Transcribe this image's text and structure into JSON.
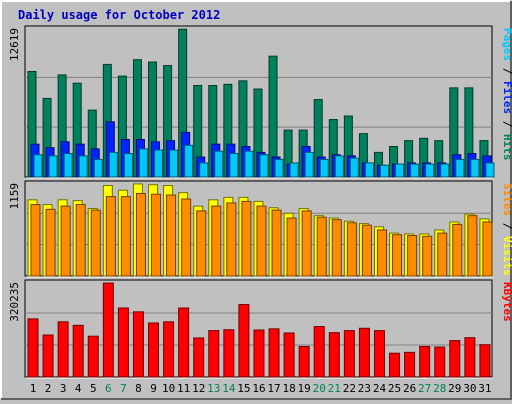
{
  "chart_data": {
    "type": "bar",
    "title": "Daily usage for October 2012",
    "categories": [
      "1",
      "2",
      "3",
      "4",
      "5",
      "6",
      "7",
      "8",
      "9",
      "10",
      "11",
      "12",
      "13",
      "14",
      "15",
      "16",
      "17",
      "18",
      "19",
      "20",
      "21",
      "22",
      "23",
      "24",
      "25",
      "26",
      "27",
      "28",
      "29",
      "30",
      "31"
    ],
    "weekend_days": [
      "6",
      "7",
      "13",
      "14",
      "20",
      "21",
      "27",
      "28"
    ],
    "panels": [
      {
        "id": "hits-files-pages",
        "ymax_label": "12619",
        "ylim": [
          0,
          12619
        ],
        "right_label": [
          "Pages",
          "Files",
          "Hits"
        ],
        "series": [
          {
            "name": "Hits",
            "color": "#00805c",
            "values": [
              9000,
              6700,
              8700,
              8000,
              5700,
              9600,
              8600,
              10000,
              9800,
              9500,
              12600,
              7800,
              7800,
              7900,
              8200,
              7500,
              10300,
              4000,
              4000,
              6600,
              4900,
              5200,
              3700,
              2100,
              2600,
              3100,
              3300,
              3100,
              7600,
              7600,
              3100
            ]
          },
          {
            "name": "Files",
            "color": "#0024ff",
            "values": [
              2800,
              2500,
              3000,
              2800,
              2400,
              4700,
              3200,
              3200,
              3000,
              3100,
              3800,
              1700,
              2800,
              2800,
              2600,
              2100,
              1700,
              1100,
              2600,
              1700,
              1900,
              1800,
              1200,
              1000,
              1100,
              1200,
              1200,
              1200,
              1900,
              2000,
              1800
            ]
          },
          {
            "name": "Pages",
            "color": "#00c8f8",
            "values": [
              1900,
              1800,
              2000,
              1800,
              1500,
              2100,
              2000,
              2400,
              2300,
              2300,
              2700,
              1200,
              2200,
              2000,
              2200,
              1900,
              1500,
              1200,
              2100,
              1500,
              1800,
              1600,
              1200,
              1000,
              1100,
              1100,
              1100,
              1100,
              1500,
              1500,
              1200
            ]
          }
        ]
      },
      {
        "id": "visits-sites",
        "ymax_label": "1159",
        "ylim": [
          0,
          1159
        ],
        "right_label": [
          "Sites",
          "Visits"
        ],
        "series": [
          {
            "name": "Visits",
            "color": "#ffff00",
            "values": [
              960,
              900,
              960,
              950,
              850,
              1140,
              1080,
              1160,
              1150,
              1140,
              1050,
              880,
              960,
              990,
              990,
              940,
              860,
              790,
              850,
              760,
              730,
              690,
              660,
              620,
              540,
              530,
              530,
              580,
              680,
              780,
              720
            ]
          },
          {
            "name": "Sites",
            "color": "#ff8c00",
            "values": [
              900,
              840,
              880,
              900,
              830,
              1000,
              1000,
              1040,
              1030,
              1020,
              970,
              820,
              880,
              920,
              940,
              880,
              830,
              730,
              820,
              740,
              710,
              670,
              640,
              580,
              520,
              510,
              500,
              540,
              650,
              760,
              680
            ]
          }
        ]
      },
      {
        "id": "kbytes",
        "ymax_label": "320235",
        "ylim": [
          0,
          320235
        ],
        "right_label": [
          "KBytes"
        ],
        "series": [
          {
            "name": "KBytes",
            "color": "#ff0000",
            "values": [
              198000,
              143000,
              188000,
              176000,
              139000,
              320000,
              235000,
              222000,
              184000,
              188000,
              235000,
              133000,
              158000,
              161000,
              247000,
              160000,
              164000,
              150000,
              104000,
              172000,
              151000,
              158000,
              166000,
              158000,
              81000,
              84000,
              104000,
              102000,
              124000,
              134000,
              110000
            ]
          }
        ]
      }
    ]
  }
}
